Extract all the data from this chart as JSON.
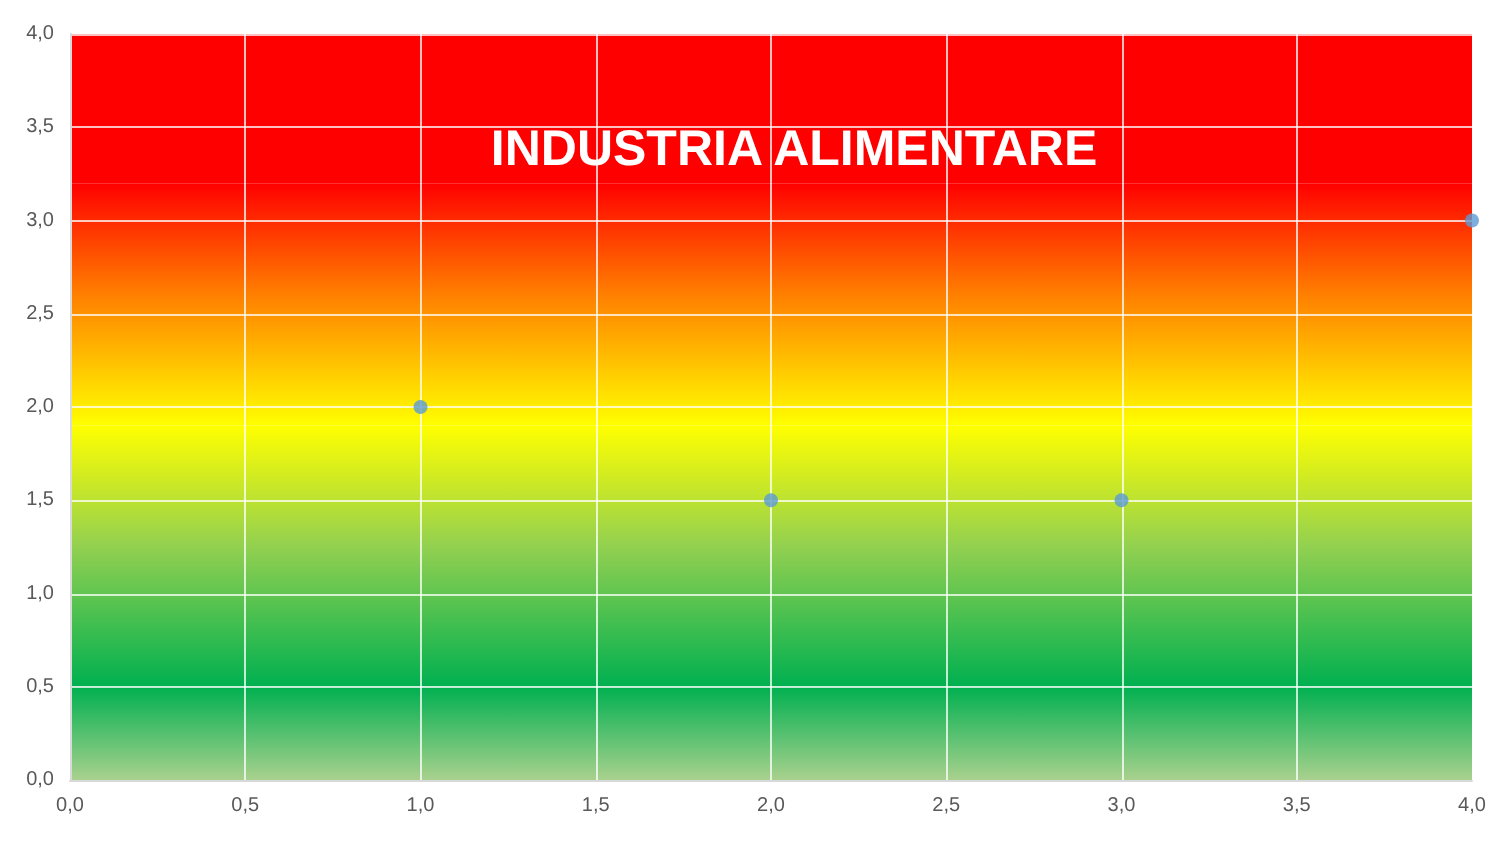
{
  "chart_data": {
    "type": "scatter",
    "title": "INDUSTRIA ALIMENTARE",
    "x": [
      1,
      2,
      3,
      4
    ],
    "series": [
      {
        "color": "#5b9bd5",
        "values": [
          2,
          1.5,
          1.5,
          3
        ]
      }
    ],
    "xlim": [
      0,
      4
    ],
    "ylim": [
      0,
      4
    ],
    "xticks": [
      {
        "value": 0,
        "label": "0,0"
      },
      {
        "value": 0.5,
        "label": "0,5"
      },
      {
        "value": 1,
        "label": "1,0"
      },
      {
        "value": 1.5,
        "label": "1,5"
      },
      {
        "value": 2,
        "label": "2,0"
      },
      {
        "value": 2.5,
        "label": "2,5"
      },
      {
        "value": 3,
        "label": "3,0"
      },
      {
        "value": 3.5,
        "label": "3,5"
      },
      {
        "value": 4,
        "label": "4,0"
      }
    ],
    "yticks": [
      {
        "value": 0,
        "label": "0,0"
      },
      {
        "value": 0.5,
        "label": "0,5"
      },
      {
        "value": 1,
        "label": "1,0"
      },
      {
        "value": 1.5,
        "label": "1,5"
      },
      {
        "value": 2,
        "label": "2,0"
      },
      {
        "value": 2.5,
        "label": "2,5"
      },
      {
        "value": 3,
        "label": "3,0"
      },
      {
        "value": 3.5,
        "label": "3,5"
      },
      {
        "value": 4,
        "label": "4,0"
      }
    ],
    "bands": [
      {
        "axis": "y",
        "from": 0,
        "to": 0.5,
        "color": "#a9d18e"
      },
      {
        "axis": "y",
        "from": 0.5,
        "to": 1.25,
        "color": "#00b050"
      },
      {
        "axis": "y",
        "from": 1.25,
        "to": 1.9,
        "color": "#92d050"
      },
      {
        "axis": "y",
        "from": 1.9,
        "to": 2.6,
        "color": "#ffff00"
      },
      {
        "axis": "y",
        "from": 2.6,
        "to": 3.2,
        "color": "#ff8000"
      },
      {
        "axis": "y",
        "from": 3.2,
        "to": 4,
        "color": "#ff0000"
      }
    ],
    "grid": true,
    "marker": "circle"
  }
}
